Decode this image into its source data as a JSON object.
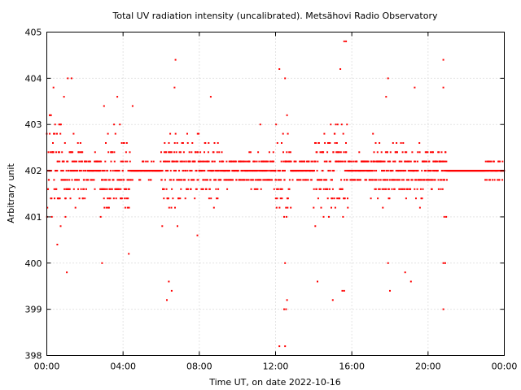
{
  "chart_data": {
    "type": "scatter",
    "title": "Total UV radiation intensity (uncalibrated). Metsähovi Radio Observatory",
    "xlabel": "Time UT, on date 2022-10-16",
    "ylabel": "Arbitrary unit",
    "xlim": [
      0,
      24
    ],
    "ylim": [
      398,
      405
    ],
    "x_tick_labels": [
      "00:00",
      "04:00",
      "08:00",
      "12:00",
      "16:00",
      "20:00",
      "00:00"
    ],
    "x_tick_values": [
      0,
      4,
      8,
      12,
      16,
      20,
      24
    ],
    "y_ticks": [
      398,
      399,
      400,
      401,
      402,
      403,
      404,
      405
    ],
    "grid": true,
    "series_color": "#ff0000",
    "quantization_step": 0.2,
    "spread_segments": [
      {
        "x_start": 0.0,
        "x_end": 1.0,
        "center": 402.0,
        "spread": 1.5
      },
      {
        "x_start": 1.0,
        "x_end": 2.0,
        "center": 402.0,
        "spread": 1.0
      },
      {
        "x_start": 2.0,
        "x_end": 2.8,
        "center": 402.0,
        "spread": 0.4
      },
      {
        "x_start": 2.8,
        "x_end": 4.4,
        "center": 401.9,
        "spread": 1.2
      },
      {
        "x_start": 4.4,
        "x_end": 6.0,
        "center": 402.0,
        "spread": 0.2
      },
      {
        "x_start": 6.0,
        "x_end": 7.2,
        "center": 402.0,
        "spread": 1.6
      },
      {
        "x_start": 7.2,
        "x_end": 9.0,
        "center": 402.0,
        "spread": 1.0
      },
      {
        "x_start": 9.0,
        "x_end": 12.0,
        "center": 402.0,
        "spread": 0.5
      },
      {
        "x_start": 12.0,
        "x_end": 12.8,
        "center": 402.0,
        "spread": 1.4
      },
      {
        "x_start": 12.8,
        "x_end": 14.0,
        "center": 402.0,
        "spread": 0.3
      },
      {
        "x_start": 14.0,
        "x_end": 15.8,
        "center": 402.0,
        "spread": 1.4
      },
      {
        "x_start": 15.8,
        "x_end": 17.0,
        "center": 402.0,
        "spread": 0.4
      },
      {
        "x_start": 17.0,
        "x_end": 19.8,
        "center": 402.0,
        "spread": 1.0
      },
      {
        "x_start": 19.8,
        "x_end": 21.0,
        "center": 402.0,
        "spread": 0.6
      },
      {
        "x_start": 21.0,
        "x_end": 23.0,
        "center": 402.0,
        "spread": 0.02
      },
      {
        "x_start": 23.0,
        "x_end": 24.0,
        "center": 402.0,
        "spread": 0.3
      }
    ],
    "outliers": [
      {
        "x": 0.15,
        "y": 403.2
      },
      {
        "x": 0.35,
        "y": 403.8
      },
      {
        "x": 0.55,
        "y": 400.4
      },
      {
        "x": 0.9,
        "y": 403.6
      },
      {
        "x": 1.05,
        "y": 399.8
      },
      {
        "x": 1.1,
        "y": 404.0
      },
      {
        "x": 1.3,
        "y": 404.0
      },
      {
        "x": 2.9,
        "y": 400.0
      },
      {
        "x": 3.0,
        "y": 403.4
      },
      {
        "x": 3.7,
        "y": 403.6
      },
      {
        "x": 4.3,
        "y": 400.2
      },
      {
        "x": 4.5,
        "y": 403.4
      },
      {
        "x": 6.3,
        "y": 399.2
      },
      {
        "x": 6.4,
        "y": 399.6
      },
      {
        "x": 6.55,
        "y": 399.4
      },
      {
        "x": 6.75,
        "y": 404.4
      },
      {
        "x": 6.7,
        "y": 403.8
      },
      {
        "x": 7.9,
        "y": 400.6
      },
      {
        "x": 8.6,
        "y": 403.6
      },
      {
        "x": 11.2,
        "y": 403.0
      },
      {
        "x": 12.2,
        "y": 404.2
      },
      {
        "x": 12.2,
        "y": 398.2
      },
      {
        "x": 12.5,
        "y": 404.0
      },
      {
        "x": 12.5,
        "y": 398.2
      },
      {
        "x": 12.45,
        "y": 399.0
      },
      {
        "x": 12.55,
        "y": 399.0
      },
      {
        "x": 12.6,
        "y": 399.2
      },
      {
        "x": 12.5,
        "y": 400.0
      },
      {
        "x": 12.6,
        "y": 403.2
      },
      {
        "x": 15.4,
        "y": 404.2
      },
      {
        "x": 15.6,
        "y": 404.8
      },
      {
        "x": 15.7,
        "y": 404.8
      },
      {
        "x": 15.5,
        "y": 399.4
      },
      {
        "x": 15.6,
        "y": 399.4
      },
      {
        "x": 15.0,
        "y": 399.2
      },
      {
        "x": 14.2,
        "y": 399.6
      },
      {
        "x": 17.9,
        "y": 404.0
      },
      {
        "x": 17.8,
        "y": 403.6
      },
      {
        "x": 17.9,
        "y": 400.0
      },
      {
        "x": 18.0,
        "y": 399.4
      },
      {
        "x": 18.8,
        "y": 399.8
      },
      {
        "x": 19.1,
        "y": 399.6
      },
      {
        "x": 19.3,
        "y": 403.8
      },
      {
        "x": 20.8,
        "y": 404.4
      },
      {
        "x": 20.8,
        "y": 403.8
      },
      {
        "x": 20.8,
        "y": 399.0
      },
      {
        "x": 20.8,
        "y": 400.0
      },
      {
        "x": 20.9,
        "y": 400.0
      },
      {
        "x": 20.85,
        "y": 401.0
      },
      {
        "x": 20.95,
        "y": 401.0
      }
    ]
  }
}
